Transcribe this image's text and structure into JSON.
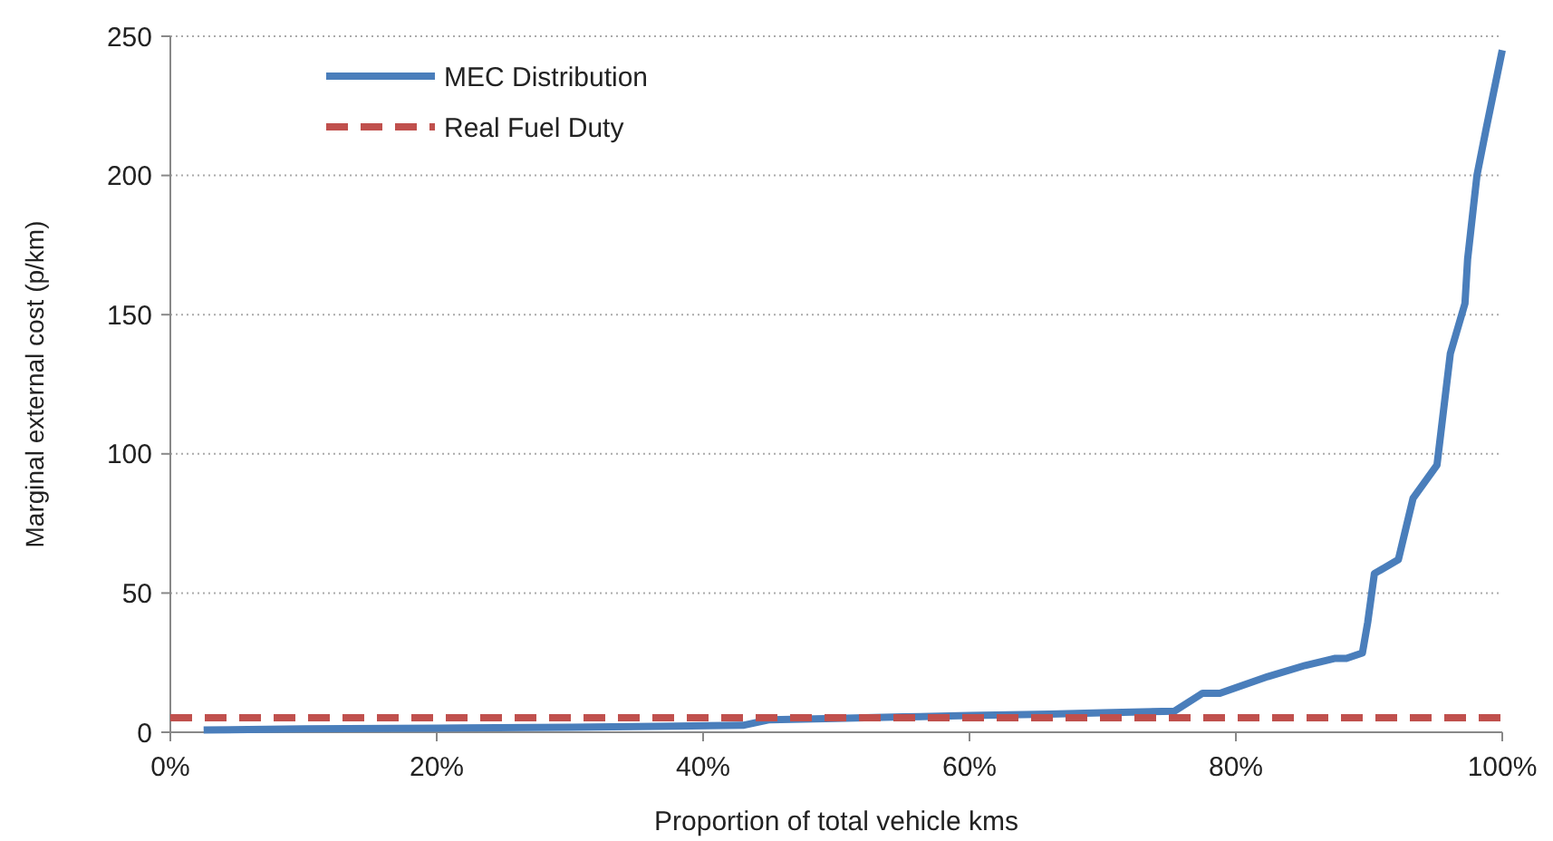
{
  "chart_data": {
    "type": "line",
    "xlabel": "Proportion of total vehicle kms",
    "ylabel": "Marginal external cost (p/km)",
    "xlim": [
      0,
      100
    ],
    "xticks": [
      {
        "value": 0,
        "label": "0%"
      },
      {
        "value": 20,
        "label": "20%"
      },
      {
        "value": 40,
        "label": "40%"
      },
      {
        "value": 60,
        "label": "60%"
      },
      {
        "value": 80,
        "label": "80%"
      },
      {
        "value": 100,
        "label": "100%"
      }
    ],
    "ylim": [
      0,
      250
    ],
    "yticks": [
      0,
      50,
      100,
      150,
      200,
      250
    ],
    "grid": "y",
    "legend": "top left",
    "series": [
      {
        "name": "MEC Distribution",
        "color": "#4a7ebb",
        "line_style": "solid",
        "x": [
          2.5,
          10,
          20,
          30,
          38,
          43,
          45,
          50,
          55,
          60,
          66,
          70,
          75.4,
          77.5,
          78.8,
          82.4,
          85.2,
          87.4,
          88.3,
          89.5,
          89.9,
          90.4,
          92.2,
          93.3,
          95.1,
          95.4,
          96.1,
          97.2,
          97.4,
          98.1,
          98.8,
          100
        ],
        "values": [
          0.8,
          1.2,
          1.5,
          1.8,
          2.2,
          2.5,
          4.5,
          5,
          5.5,
          6,
          6.5,
          7,
          7.6,
          14,
          14,
          20,
          24,
          26.5,
          26.5,
          28.5,
          39.5,
          57,
          62,
          84,
          96,
          108,
          136,
          154,
          170,
          200,
          217,
          245
        ]
      },
      {
        "name": "Real Fuel Duty",
        "color": "#c0504d",
        "line_style": "dashed",
        "x": [
          0,
          100
        ],
        "values": [
          5.2,
          5.2
        ]
      }
    ]
  }
}
